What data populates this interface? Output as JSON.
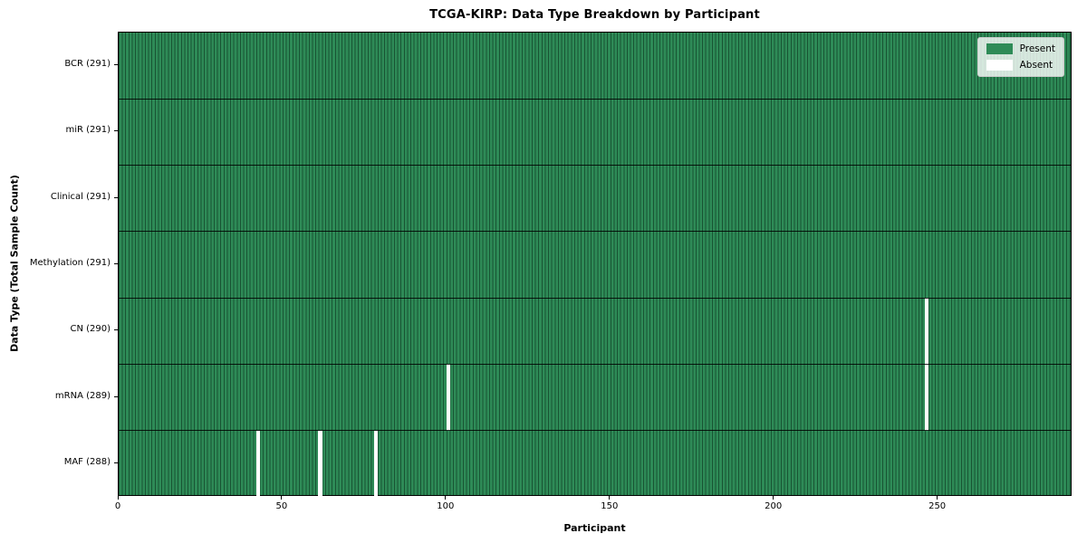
{
  "chart_data": {
    "type": "heatmap",
    "title": "TCGA-KIRP: Data Type Breakdown by Participant",
    "xlabel": "Participant",
    "ylabel": "Data Type (Total Sample Count)",
    "x_range": [
      0,
      291
    ],
    "x_ticks": [
      0,
      50,
      100,
      150,
      200,
      250
    ],
    "n_participants": 291,
    "grid": false,
    "rows": [
      {
        "label": "BCR (291)",
        "name": "BCR",
        "count": 291,
        "missing_participants": []
      },
      {
        "label": "miR (291)",
        "name": "miR",
        "count": 291,
        "missing_participants": []
      },
      {
        "label": "Clinical (291)",
        "name": "Clinical",
        "count": 291,
        "missing_participants": []
      },
      {
        "label": "Methylation (291)",
        "name": "Methylation",
        "count": 291,
        "missing_participants": []
      },
      {
        "label": "CN (290)",
        "name": "CN",
        "count": 290,
        "missing_participants": [
          246
        ]
      },
      {
        "label": "mRNA (289)",
        "name": "mRNA",
        "count": 289,
        "missing_participants": [
          100,
          246
        ]
      },
      {
        "label": "MAF (288)",
        "name": "MAF",
        "count": 288,
        "missing_participants": [
          42,
          61,
          78
        ]
      }
    ],
    "legend": {
      "position": "upper right",
      "entries": [
        {
          "label": "Present",
          "color": "#2e8b57"
        },
        {
          "label": "Absent",
          "color": "#ffffff"
        }
      ]
    },
    "colors": {
      "present": "#2e8b57",
      "absent": "#ffffff",
      "bar_edge": "rgba(5,38,21,0.55)",
      "row_separator": "#000000",
      "spine": "#000000"
    }
  }
}
